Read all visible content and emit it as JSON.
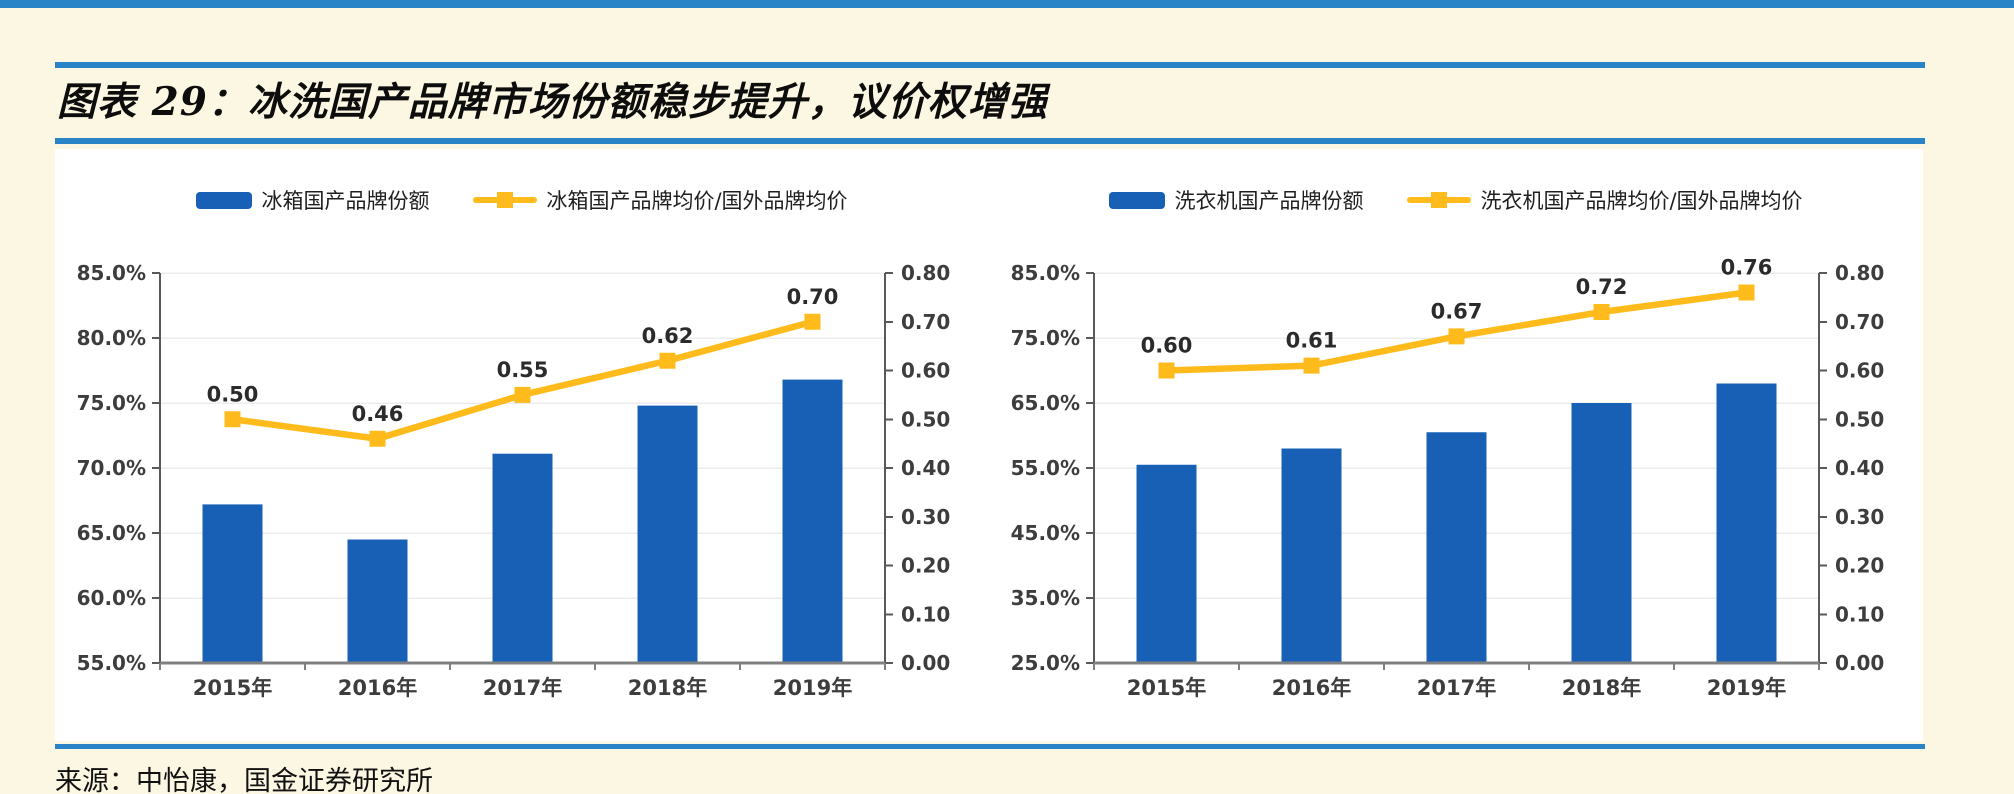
{
  "header": {
    "title": "图表 29：冰洗国产品牌市场份额稳步提升，议价权增强"
  },
  "footer": {
    "source": "来源：中怡康，国金证券研究所"
  },
  "colors": {
    "accent_rule_blue": "#2884c6",
    "bar_blue": "#1760b5",
    "line_yellow": "#ffbb1c",
    "axis_dark": "#595959",
    "axis_bottom": "#808080",
    "gridline": "#ececec",
    "page_background": "#fcf7e3",
    "panel_background": "#ffffff"
  },
  "chart_data": [
    {
      "type": "bar+line",
      "title": "",
      "categories": [
        "2015年",
        "2016年",
        "2017年",
        "2018年",
        "2019年"
      ],
      "series": [
        {
          "name": "冰箱国产品牌份额",
          "kind": "bar",
          "axis": "left",
          "unit": "%",
          "values": [
            67.2,
            64.5,
            71.1,
            74.8,
            76.8
          ]
        },
        {
          "name": "冰箱国产品牌均价/国外品牌均价",
          "kind": "line",
          "axis": "right",
          "values": [
            0.5,
            0.46,
            0.55,
            0.62,
            0.7
          ],
          "point_labels": [
            "0.50",
            "0.46",
            "0.55",
            "0.62",
            "0.70"
          ]
        }
      ],
      "left_axis": {
        "min": 55,
        "max": 85,
        "step": 5,
        "tick_labels": [
          "85.0%",
          "80.0%",
          "75.0%",
          "70.0%",
          "65.0%",
          "60.0%",
          "55.0%"
        ]
      },
      "right_axis": {
        "min": 0.0,
        "max": 0.8,
        "step": 0.1,
        "tick_labels": [
          "0.80",
          "0.70",
          "0.60",
          "0.50",
          "0.40",
          "0.30",
          "0.20",
          "0.10",
          "0.00"
        ]
      },
      "legend_position": "top",
      "grid": "horizontal"
    },
    {
      "type": "bar+line",
      "title": "",
      "categories": [
        "2015年",
        "2016年",
        "2017年",
        "2018年",
        "2019年"
      ],
      "series": [
        {
          "name": "洗衣机国产品牌份额",
          "kind": "bar",
          "axis": "left",
          "unit": "%",
          "values": [
            55.5,
            58.0,
            60.5,
            65.0,
            68.0
          ]
        },
        {
          "name": "洗衣机国产品牌均价/国外品牌均价",
          "kind": "line",
          "axis": "right",
          "values": [
            0.6,
            0.61,
            0.67,
            0.72,
            0.76
          ],
          "point_labels": [
            "0.60",
            "0.61",
            "0.67",
            "0.72",
            "0.76"
          ]
        }
      ],
      "left_axis": {
        "min": 25,
        "max": 85,
        "step": 10,
        "tick_labels": [
          "85.0%",
          "75.0%",
          "65.0%",
          "55.0%",
          "45.0%",
          "35.0%",
          "25.0%"
        ]
      },
      "right_axis": {
        "min": 0.0,
        "max": 0.8,
        "step": 0.1,
        "tick_labels": [
          "0.80",
          "0.70",
          "0.60",
          "0.50",
          "0.40",
          "0.30",
          "0.20",
          "0.10",
          "0.00"
        ]
      },
      "legend_position": "top",
      "grid": "horizontal"
    }
  ]
}
